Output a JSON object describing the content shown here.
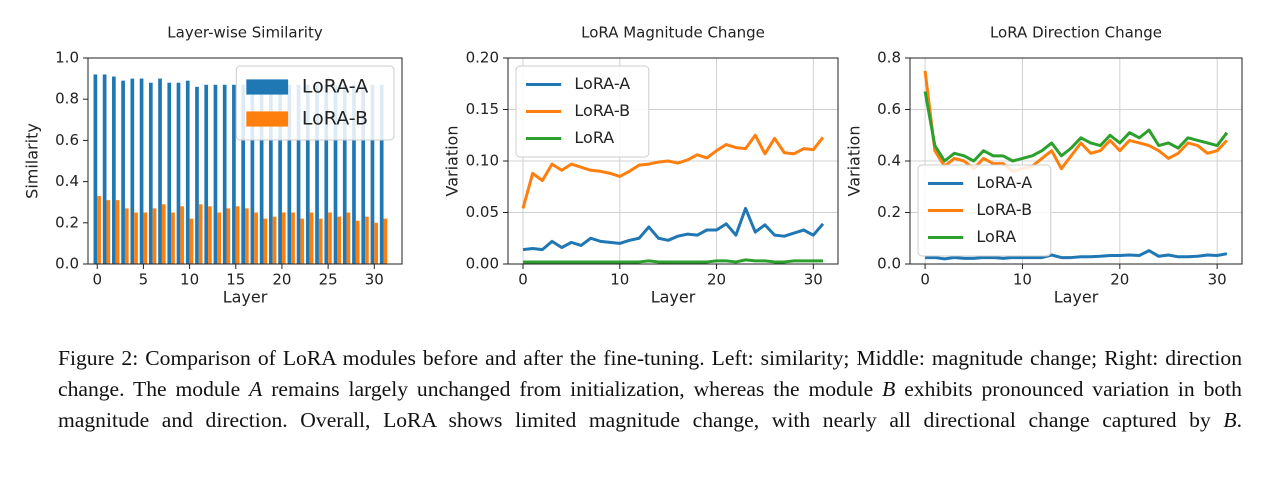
{
  "chart_data": [
    {
      "type": "bar",
      "title": "Layer-wise Similarity",
      "x_label": "Layer",
      "y_label": "Similarity",
      "x": [
        0,
        1,
        2,
        3,
        4,
        5,
        6,
        7,
        8,
        9,
        10,
        11,
        12,
        13,
        14,
        15,
        16,
        17,
        18,
        19,
        20,
        21,
        22,
        23,
        24,
        25,
        26,
        27,
        28,
        29,
        30,
        31
      ],
      "series": [
        {
          "name": "LoRA-A",
          "color": "#1f77b4",
          "values": [
            0.92,
            0.92,
            0.91,
            0.89,
            0.9,
            0.9,
            0.88,
            0.9,
            0.88,
            0.88,
            0.89,
            0.86,
            0.87,
            0.87,
            0.87,
            0.87,
            0.87,
            0.87,
            0.87,
            0.87,
            0.87,
            0.87,
            0.87,
            0.87,
            0.87,
            0.87,
            0.87,
            0.87,
            0.87,
            0.87,
            0.87,
            0.87
          ]
        },
        {
          "name": "LoRA-B",
          "color": "#ff7f0e",
          "values": [
            0.33,
            0.31,
            0.31,
            0.27,
            0.25,
            0.25,
            0.27,
            0.29,
            0.25,
            0.28,
            0.22,
            0.29,
            0.28,
            0.25,
            0.27,
            0.28,
            0.27,
            0.25,
            0.22,
            0.23,
            0.25,
            0.25,
            0.22,
            0.25,
            0.22,
            0.25,
            0.23,
            0.25,
            0.21,
            0.23,
            0.2,
            0.22
          ]
        }
      ],
      "xlim": [
        -1,
        33
      ],
      "xticks": [
        0,
        5,
        10,
        15,
        20,
        25,
        30
      ],
      "ylim": [
        0,
        1
      ],
      "yticks": [
        {
          "value": 0,
          "label": "0.0"
        },
        {
          "value": 0.2,
          "label": "0.2"
        },
        {
          "value": 0.4,
          "label": "0.4"
        },
        {
          "value": 0.6,
          "label": "0.6"
        },
        {
          "value": 0.8,
          "label": "0.8"
        },
        {
          "value": 1,
          "label": "1.0"
        }
      ],
      "grid": false,
      "legend": "upper-right"
    },
    {
      "type": "line",
      "title": "LoRA Magnitude Change",
      "x_label": "Layer",
      "y_label": "Variation",
      "x": [
        0,
        1,
        2,
        3,
        4,
        5,
        6,
        7,
        8,
        9,
        10,
        11,
        12,
        13,
        14,
        15,
        16,
        17,
        18,
        19,
        20,
        21,
        22,
        23,
        24,
        25,
        26,
        27,
        28,
        29,
        30,
        31
      ],
      "series": [
        {
          "name": "LoRA-A",
          "color": "#1f77b4",
          "values": [
            0.014,
            0.015,
            0.014,
            0.022,
            0.016,
            0.021,
            0.018,
            0.025,
            0.022,
            0.021,
            0.02,
            0.023,
            0.025,
            0.036,
            0.025,
            0.023,
            0.027,
            0.029,
            0.028,
            0.033,
            0.033,
            0.039,
            0.028,
            0.054,
            0.031,
            0.038,
            0.028,
            0.027,
            0.03,
            0.033,
            0.028,
            0.039
          ]
        },
        {
          "name": "LoRA-B",
          "color": "#ff7f0e",
          "values": [
            0.054,
            0.088,
            0.081,
            0.097,
            0.091,
            0.097,
            0.094,
            0.091,
            0.09,
            0.088,
            0.085,
            0.09,
            0.096,
            0.097,
            0.099,
            0.1,
            0.098,
            0.101,
            0.106,
            0.103,
            0.11,
            0.116,
            0.113,
            0.112,
            0.125,
            0.107,
            0.122,
            0.108,
            0.107,
            0.112,
            0.111,
            0.123
          ]
        },
        {
          "name": "LoRA",
          "color": "#2ca02c",
          "values": [
            0.002,
            0.002,
            0.002,
            0.002,
            0.002,
            0.002,
            0.002,
            0.002,
            0.002,
            0.002,
            0.002,
            0.002,
            0.002,
            0.003,
            0.002,
            0.002,
            0.002,
            0.002,
            0.002,
            0.002,
            0.003,
            0.003,
            0.002,
            0.004,
            0.003,
            0.003,
            0.002,
            0.002,
            0.003,
            0.003,
            0.003,
            0.003
          ]
        }
      ],
      "xlim": [
        -1.55,
        32.55
      ],
      "xticks": [
        0,
        10,
        20,
        30
      ],
      "ylim": [
        0,
        0.2
      ],
      "yticks": [
        {
          "value": 0,
          "label": "0.00"
        },
        {
          "value": 0.05,
          "label": "0.05"
        },
        {
          "value": 0.1,
          "label": "0.10"
        },
        {
          "value": 0.15,
          "label": "0.15"
        },
        {
          "value": 0.2,
          "label": "0.20"
        }
      ],
      "grid": true,
      "legend": "upper-left"
    },
    {
      "type": "line",
      "title": "LoRA Direction Change",
      "x_label": "Layer",
      "y_label": "Variation",
      "x": [
        0,
        1,
        2,
        3,
        4,
        5,
        6,
        7,
        8,
        9,
        10,
        11,
        12,
        13,
        14,
        15,
        16,
        17,
        18,
        19,
        20,
        21,
        22,
        23,
        24,
        25,
        26,
        27,
        28,
        29,
        30,
        31
      ],
      "series": [
        {
          "name": "LoRA-A",
          "color": "#1f77b4",
          "values": [
            0.025,
            0.025,
            0.02,
            0.025,
            0.022,
            0.022,
            0.025,
            0.025,
            0.022,
            0.025,
            0.025,
            0.025,
            0.025,
            0.035,
            0.025,
            0.025,
            0.028,
            0.028,
            0.03,
            0.033,
            0.033,
            0.035,
            0.033,
            0.052,
            0.03,
            0.035,
            0.028,
            0.028,
            0.03,
            0.035,
            0.033,
            0.04
          ]
        },
        {
          "name": "LoRA-B",
          "color": "#ff7f0e",
          "values": [
            0.75,
            0.44,
            0.38,
            0.41,
            0.4,
            0.37,
            0.41,
            0.39,
            0.39,
            0.36,
            0.37,
            0.38,
            0.41,
            0.44,
            0.37,
            0.42,
            0.47,
            0.43,
            0.44,
            0.48,
            0.44,
            0.48,
            0.47,
            0.46,
            0.44,
            0.41,
            0.43,
            0.47,
            0.46,
            0.43,
            0.44,
            0.48
          ]
        },
        {
          "name": "LoRA",
          "color": "#2ca02c",
          "values": [
            0.67,
            0.46,
            0.4,
            0.43,
            0.42,
            0.4,
            0.44,
            0.42,
            0.42,
            0.4,
            0.41,
            0.42,
            0.44,
            0.47,
            0.42,
            0.45,
            0.49,
            0.47,
            0.46,
            0.5,
            0.47,
            0.51,
            0.49,
            0.52,
            0.46,
            0.47,
            0.45,
            0.49,
            0.48,
            0.47,
            0.46,
            0.51
          ]
        }
      ],
      "xlim": [
        -1.55,
        32.55
      ],
      "xticks": [
        0,
        10,
        20,
        30
      ],
      "ylim": [
        0,
        0.8
      ],
      "yticks": [
        {
          "value": 0,
          "label": "0.0"
        },
        {
          "value": 0.2,
          "label": "0.2"
        },
        {
          "value": 0.4,
          "label": "0.4"
        },
        {
          "value": 0.6,
          "label": "0.6"
        },
        {
          "value": 0.8,
          "label": "0.8"
        }
      ],
      "grid": true,
      "legend": "lower-left"
    }
  ],
  "caption": [
    "Figure 2: Comparison of LoRA modules before and after the fine-tuning. Left: similarity; Middle: magnitude change; Right: direction change. The module ",
    "A",
    " remains largely unchanged from initialization, whereas the module ",
    "B",
    " exhibits pronounced variation in both magnitude and direction. Overall, LoRA shows limited magnitude change, with nearly all directional change captured by ",
    "B",
    "."
  ]
}
